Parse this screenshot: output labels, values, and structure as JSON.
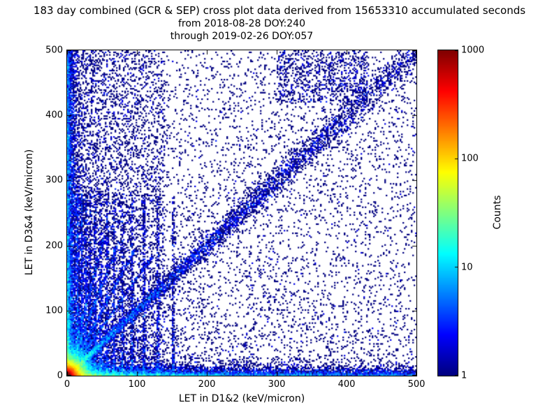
{
  "chart_data": {
    "type": "heatmap",
    "title_lines": [
      "183 day combined (GCR & SEP) cross plot data derived from 15653310 accumulated seconds",
      "from 2018-08-28 DOY:240",
      "through 2019-02-26 DOY:057"
    ],
    "duration_days": 183,
    "accumulated_seconds": 15653310,
    "start": "2018-08-28 DOY:240",
    "end": "2019-02-26 DOY:057",
    "xlabel": "LET in D1&2 (keV/micron)",
    "ylabel": "LET in D3&4 (keV/micron)",
    "xlim": [
      0,
      500
    ],
    "ylim": [
      0,
      500
    ],
    "xticks": [
      0,
      100,
      200,
      300,
      400,
      500
    ],
    "yticks": [
      0,
      100,
      200,
      300,
      400,
      500
    ],
    "grid": false,
    "colorbar": {
      "label": "Counts",
      "scale": "log",
      "min": 1,
      "max": 1000,
      "ticks": [
        1,
        10,
        100,
        1000
      ],
      "colormap": "jet"
    },
    "seed": 42,
    "features": [
      {
        "kind": "hotspot",
        "scale": 11,
        "points": 26000
      },
      {
        "kind": "hband",
        "yscale": 5,
        "xpow": 2.2,
        "points": 8000
      },
      {
        "kind": "vband",
        "xscale": 5,
        "ypow": 2.2,
        "points": 6000
      },
      {
        "kind": "diagonal",
        "sigma0": 2.5,
        "sigma_slope": 0.03,
        "xpow": 1.7,
        "points": 5200
      },
      {
        "kind": "streaks",
        "xs": [
          15,
          21,
          27,
          33,
          40,
          48,
          57,
          67,
          79,
          93,
          110,
          130,
          152
        ],
        "ymax": 280,
        "points": 4600
      },
      {
        "kind": "rays",
        "slopes": [
          1.5,
          2.0,
          2.8,
          4.0
        ],
        "rmax": 220,
        "points": 2000
      },
      {
        "kind": "lefthaze",
        "xmax": 140,
        "xpow": 1.6,
        "ypow": 1.5,
        "points": 5200
      },
      {
        "kind": "lowbias",
        "pow": 2.0,
        "points": 4000
      },
      {
        "kind": "uniform",
        "points": 3800
      },
      {
        "kind": "topcluster",
        "xrange": [
          300,
          430
        ],
        "yrange": [
          420,
          500
        ],
        "points": 800
      }
    ]
  }
}
